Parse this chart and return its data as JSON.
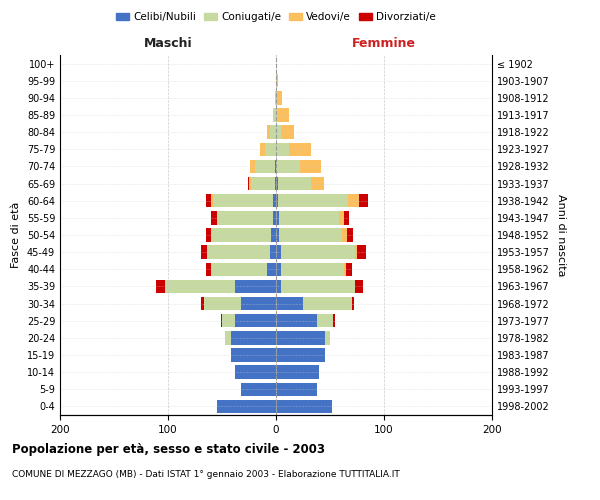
{
  "age_groups": [
    "0-4",
    "5-9",
    "10-14",
    "15-19",
    "20-24",
    "25-29",
    "30-34",
    "35-39",
    "40-44",
    "45-49",
    "50-54",
    "55-59",
    "60-64",
    "65-69",
    "70-74",
    "75-79",
    "80-84",
    "85-89",
    "90-94",
    "95-99",
    "100+"
  ],
  "birth_years": [
    "1998-2002",
    "1993-1997",
    "1988-1992",
    "1983-1987",
    "1978-1982",
    "1973-1977",
    "1968-1972",
    "1963-1967",
    "1958-1962",
    "1953-1957",
    "1948-1952",
    "1943-1947",
    "1938-1942",
    "1933-1937",
    "1928-1932",
    "1923-1927",
    "1918-1922",
    "1913-1917",
    "1908-1912",
    "1903-1907",
    "≤ 1902"
  ],
  "maschi": {
    "celibi": [
      55,
      32,
      38,
      42,
      42,
      38,
      32,
      38,
      8,
      6,
      5,
      3,
      3,
      1,
      1,
      0,
      0,
      0,
      0,
      0,
      0
    ],
    "coniugati": [
      0,
      0,
      0,
      0,
      5,
      12,
      35,
      65,
      52,
      58,
      55,
      52,
      55,
      22,
      18,
      10,
      6,
      3,
      1,
      0,
      0
    ],
    "vedovi": [
      0,
      0,
      0,
      0,
      0,
      0,
      0,
      0,
      0,
      0,
      0,
      0,
      2,
      2,
      5,
      5,
      2,
      0,
      0,
      0,
      0
    ],
    "divorziati": [
      0,
      0,
      0,
      0,
      0,
      1,
      2,
      8,
      5,
      5,
      5,
      5,
      5,
      1,
      0,
      0,
      0,
      0,
      0,
      0,
      0
    ]
  },
  "femmine": {
    "nubili": [
      52,
      38,
      40,
      45,
      45,
      38,
      25,
      5,
      5,
      5,
      3,
      3,
      2,
      2,
      0,
      0,
      0,
      0,
      0,
      0,
      0
    ],
    "coniugate": [
      0,
      0,
      0,
      0,
      5,
      15,
      45,
      68,
      58,
      68,
      58,
      55,
      65,
      30,
      22,
      12,
      5,
      2,
      1,
      0,
      0
    ],
    "vedove": [
      0,
      0,
      0,
      0,
      0,
      0,
      0,
      0,
      2,
      2,
      5,
      5,
      10,
      12,
      20,
      20,
      12,
      10,
      5,
      2,
      0
    ],
    "divorziate": [
      0,
      0,
      0,
      0,
      0,
      2,
      2,
      8,
      5,
      8,
      5,
      5,
      8,
      0,
      0,
      0,
      0,
      0,
      0,
      0,
      0
    ]
  },
  "colors": {
    "celibi_nubili": "#4472C4",
    "coniugati": "#C5D9A0",
    "vedovi": "#FBBF5E",
    "divorziati": "#CC0000"
  },
  "xlim": 200,
  "title": "Popolazione per età, sesso e stato civile - 2003",
  "subtitle": "COMUNE DI MEZZAGO (MB) - Dati ISTAT 1° gennaio 2003 - Elaborazione TUTTITALIA.IT",
  "ylabel_left": "Fasce di età",
  "ylabel_right": "Anni di nascita",
  "xlabel_left": "Maschi",
  "xlabel_right": "Femmine",
  "bg_color": "#FFFFFF",
  "grid_color": "#CCCCCC"
}
